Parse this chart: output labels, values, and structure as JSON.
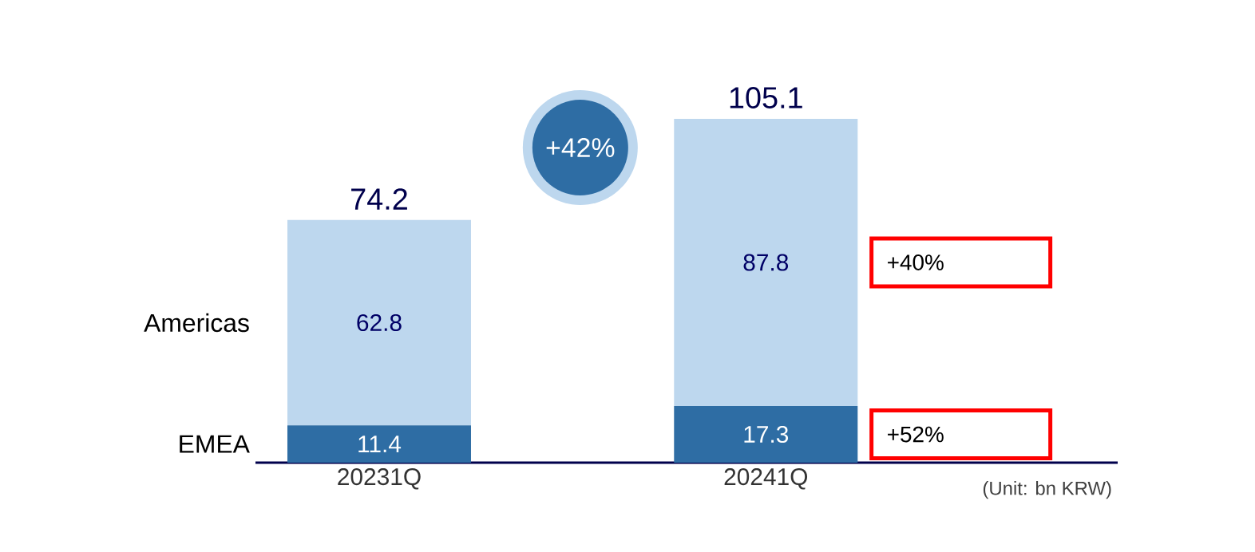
{
  "chart_data": {
    "type": "bar",
    "stacked": true,
    "categories": [
      "20231Q",
      "20241Q"
    ],
    "series": [
      {
        "name": "EMEA",
        "color": "#2e6da4",
        "values": [
          11.4,
          17.3
        ]
      },
      {
        "name": "Americas",
        "color": "#bdd7ee",
        "values": [
          62.8,
          87.8
        ]
      }
    ],
    "data_labels": true,
    "totals": [
      "74.2",
      "105.1"
    ],
    "annotations": [
      "+42%",
      "+40%",
      "+52%",
      "(Unit: bn KRW)"
    ]
  }
}
